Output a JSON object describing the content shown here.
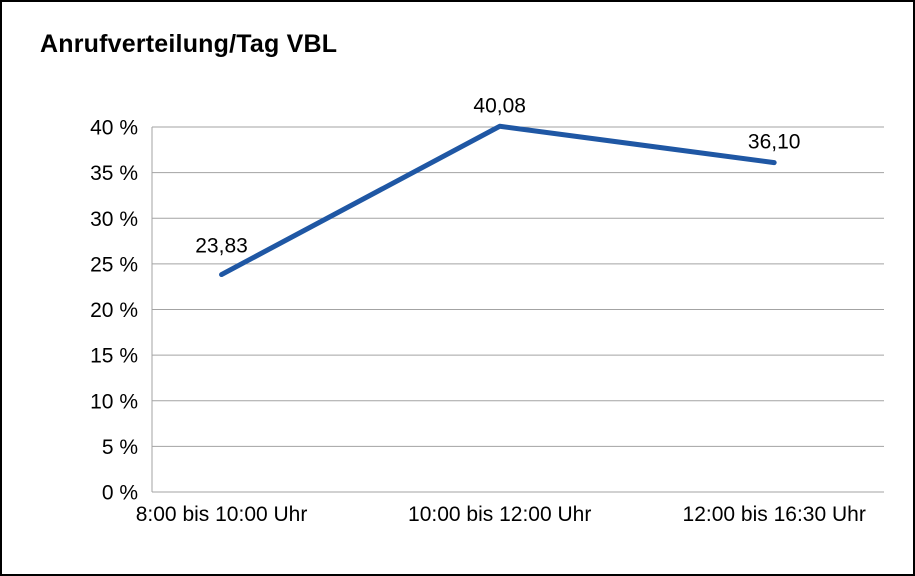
{
  "chart_data": {
    "type": "line",
    "title": "Anrufverteilung/Tag VBL",
    "categories": [
      "8:00 bis 10:00 Uhr",
      "10:00 bis 12:00 Uhr",
      "12:00 bis 16:30 Uhr"
    ],
    "series": [
      {
        "name": "Anrufverteilung/Tag VBL",
        "values": [
          23.83,
          40.08,
          36.1
        ]
      }
    ],
    "value_labels": [
      "23,83",
      "40,08",
      "36,10"
    ],
    "xlabel": "",
    "ylabel": "",
    "ylim": [
      0,
      40
    ],
    "yticks": [
      0,
      5,
      10,
      15,
      20,
      25,
      30,
      35,
      40
    ],
    "ytick_labels": [
      "0 %",
      "5 %",
      "10 %",
      "15 %",
      "20 %",
      "25 %",
      "30 %",
      "35 %",
      "40 %"
    ],
    "grid": true,
    "legend": "none",
    "colors": {
      "line": "#1f57a4",
      "grid": "#a3a3a3",
      "axis": "#a3a3a3",
      "text": "#000000"
    }
  }
}
